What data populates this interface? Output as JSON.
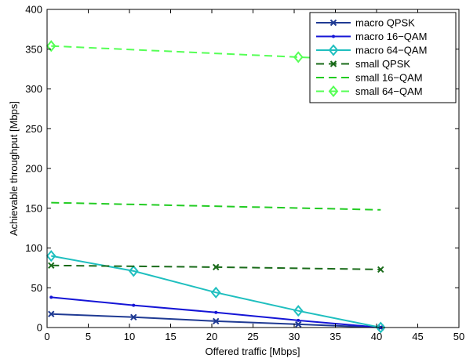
{
  "chart_data": {
    "type": "line",
    "title": "",
    "xlabel": "Offered traffic [Mbps]",
    "ylabel": "Achievable throughput [Mbps]",
    "xlim": [
      0,
      50
    ],
    "ylim": [
      0,
      400
    ],
    "xticks": [
      0,
      5,
      10,
      15,
      20,
      25,
      30,
      35,
      40,
      45,
      50
    ],
    "yticks": [
      0,
      50,
      100,
      150,
      200,
      250,
      300,
      350,
      400
    ],
    "grid": false,
    "legend_position": "top-right",
    "series": [
      {
        "name": "macro QPSK",
        "color": "#1f3a93",
        "dash": "solid",
        "marker": "x",
        "x": [
          0.5,
          10.5,
          20.5,
          30.5,
          40.5
        ],
        "y": [
          17,
          13,
          8,
          4,
          0
        ]
      },
      {
        "name": "macro 16−QAM",
        "color": "#1515d6",
        "dash": "solid",
        "marker": "dot",
        "x": [
          0.5,
          10.5,
          20.5,
          30.5,
          40.5
        ],
        "y": [
          38,
          28,
          19,
          9,
          0
        ]
      },
      {
        "name": "macro 64−QAM",
        "color": "#1fbfbf",
        "dash": "solid",
        "marker": "diamond",
        "x": [
          0.5,
          10.5,
          20.5,
          30.5,
          40.5
        ],
        "y": [
          90,
          71,
          44,
          21,
          0
        ]
      },
      {
        "name": "small QPSK",
        "color": "#1a6b1a",
        "dash": "dashed",
        "marker": "x",
        "x": [
          0.5,
          20.5,
          40.5
        ],
        "y": [
          78,
          76,
          73
        ]
      },
      {
        "name": "small 16−QAM",
        "color": "#22cc22",
        "dash": "dashed",
        "marker": "none",
        "x": [
          0.5,
          40.5
        ],
        "y": [
          157,
          148
        ]
      },
      {
        "name": "small 64−QAM",
        "color": "#55ff55",
        "dash": "dashed",
        "marker": "diamond",
        "x": [
          0.5,
          30.5,
          40.5
        ],
        "y": [
          354,
          340,
          336
        ]
      }
    ]
  }
}
